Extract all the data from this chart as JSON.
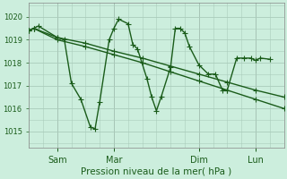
{
  "xlabel": "Pression niveau de la mer( hPa )",
  "bg_color": "#cceedd",
  "line_color": "#1a5c1a",
  "markersize": 2.5,
  "linewidth": 1.0,
  "ylim": [
    1014.3,
    1020.6
  ],
  "yticks": [
    1015,
    1016,
    1017,
    1018,
    1019,
    1020
  ],
  "ytick_labels": [
    "1015",
    "1016",
    "1017",
    "1018",
    "1019",
    "1020"
  ],
  "x_tick_labels": [
    "Sam",
    "Mar",
    "Dim",
    "Lun"
  ],
  "x_tick_positions": [
    12,
    36,
    72,
    96
  ],
  "xlim": [
    0,
    108
  ],
  "grid_color": "#aaccbb",
  "tick_color": "#1a5c1a",
  "xlabel_fontsize": 7.5,
  "ytick_fontsize": 6,
  "xtick_fontsize": 7,
  "series": [
    {
      "x": [
        0,
        2,
        4,
        12,
        15,
        18,
        22,
        26,
        28,
        30,
        34,
        36,
        38,
        42,
        44,
        46,
        50,
        52,
        54,
        56,
        60,
        62,
        64,
        66,
        68,
        72,
        76,
        79,
        82,
        84,
        88,
        91,
        94,
        96,
        98,
        102
      ],
      "y": [
        1019.4,
        1019.5,
        1019.6,
        1019.1,
        1019.0,
        1017.1,
        1016.4,
        1015.2,
        1015.1,
        1016.3,
        1019.0,
        1019.5,
        1019.9,
        1019.7,
        1018.8,
        1018.6,
        1017.3,
        1016.5,
        1015.9,
        1016.5,
        1017.8,
        1019.5,
        1019.5,
        1019.3,
        1018.7,
        1017.9,
        1017.5,
        1017.5,
        1016.8,
        1016.8,
        1018.2,
        1018.2,
        1018.2,
        1018.1,
        1018.2,
        1018.15
      ]
    },
    {
      "x": [
        0,
        2,
        12,
        24,
        36,
        48,
        60,
        72,
        84,
        96,
        108
      ],
      "y": [
        1019.4,
        1019.5,
        1019.1,
        1018.85,
        1018.5,
        1018.2,
        1017.85,
        1017.5,
        1017.15,
        1016.8,
        1016.5
      ]
    },
    {
      "x": [
        0,
        2,
        12,
        24,
        36,
        48,
        60,
        72,
        84,
        96,
        108
      ],
      "y": [
        1019.4,
        1019.5,
        1019.0,
        1018.7,
        1018.35,
        1018.0,
        1017.6,
        1017.2,
        1016.8,
        1016.4,
        1016.0
      ]
    }
  ]
}
